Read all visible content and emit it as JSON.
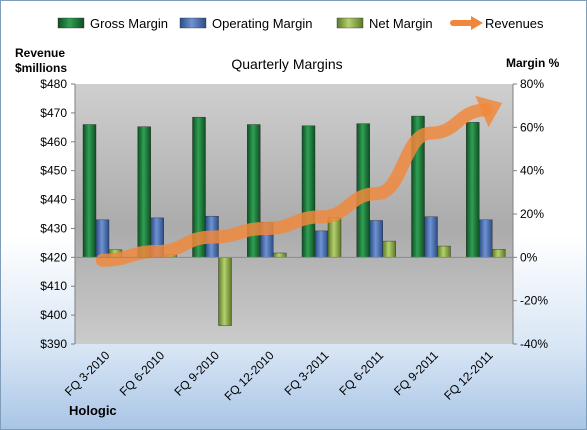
{
  "chart_data": {
    "type": "bar",
    "title": "Quarterly Margins",
    "left_axis": {
      "title_line1": "Revenue",
      "title_line2": "$millions",
      "min": 390,
      "max": 480,
      "step": 10,
      "format": "$"
    },
    "right_axis": {
      "title": "Margin %",
      "min": -40,
      "max": 80,
      "step": 20,
      "format": "%"
    },
    "categories": [
      "FQ 3-2010",
      "FQ 6-2010",
      "FQ 9-2010",
      "FQ 12-2010",
      "FQ 3-2011",
      "FQ 6-2011",
      "FQ 9-2011",
      "FQ 12-2011"
    ],
    "series": [
      {
        "name": "Gross Margin",
        "axis": "right",
        "kind": "bar",
        "color": "#1f7a3a",
        "values": [
          61.3,
          60.3,
          64.7,
          61.3,
          60.7,
          61.7,
          65.2,
          62.3
        ]
      },
      {
        "name": "Operating Margin",
        "axis": "right",
        "kind": "bar",
        "color": "#4a72b8",
        "values": [
          17.3,
          18.2,
          19.0,
          16.2,
          12.2,
          17.0,
          18.7,
          17.3
        ]
      },
      {
        "name": "Net Margin",
        "axis": "right",
        "kind": "bar",
        "color": "#8eaf4a",
        "values": [
          3.5,
          1.2,
          -31.5,
          2.0,
          18.3,
          7.5,
          5.2,
          3.7
        ]
      },
      {
        "name": "Revenues",
        "axis": "left",
        "kind": "arrow",
        "color": "#f0883c",
        "values": [
          419,
          422,
          427,
          430,
          434,
          442,
          463,
          471
        ]
      }
    ],
    "legend_position": "top",
    "grid": false,
    "footer_label": "Hologic"
  }
}
